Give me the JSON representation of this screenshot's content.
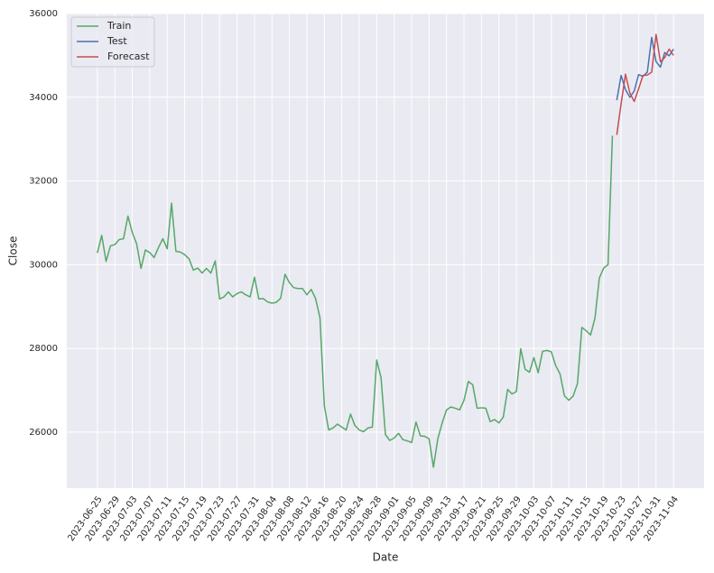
{
  "chart_data": {
    "type": "line",
    "x_label": "Date",
    "y_label": "Close",
    "x": [
      "2023-06-25",
      "2023-06-26",
      "2023-06-27",
      "2023-06-28",
      "2023-06-29",
      "2023-06-30",
      "2023-07-01",
      "2023-07-02",
      "2023-07-03",
      "2023-07-04",
      "2023-07-05",
      "2023-07-06",
      "2023-07-07",
      "2023-07-08",
      "2023-07-09",
      "2023-07-10",
      "2023-07-11",
      "2023-07-12",
      "2023-07-13",
      "2023-07-14",
      "2023-07-15",
      "2023-07-16",
      "2023-07-17",
      "2023-07-18",
      "2023-07-19",
      "2023-07-20",
      "2023-07-21",
      "2023-07-22",
      "2023-07-23",
      "2023-07-24",
      "2023-07-25",
      "2023-07-26",
      "2023-07-27",
      "2023-07-28",
      "2023-07-29",
      "2023-07-30",
      "2023-07-31",
      "2023-08-01",
      "2023-08-02",
      "2023-08-03",
      "2023-08-04",
      "2023-08-05",
      "2023-08-06",
      "2023-08-07",
      "2023-08-08",
      "2023-08-09",
      "2023-08-10",
      "2023-08-11",
      "2023-08-12",
      "2023-08-13",
      "2023-08-14",
      "2023-08-15",
      "2023-08-16",
      "2023-08-17",
      "2023-08-18",
      "2023-08-19",
      "2023-08-20",
      "2023-08-21",
      "2023-08-22",
      "2023-08-23",
      "2023-08-24",
      "2023-08-25",
      "2023-08-26",
      "2023-08-27",
      "2023-08-28",
      "2023-08-29",
      "2023-08-30",
      "2023-08-31",
      "2023-09-01",
      "2023-09-02",
      "2023-09-03",
      "2023-09-04",
      "2023-09-05",
      "2023-09-06",
      "2023-09-07",
      "2023-09-08",
      "2023-09-09",
      "2023-09-10",
      "2023-09-11",
      "2023-09-12",
      "2023-09-13",
      "2023-09-14",
      "2023-09-15",
      "2023-09-16",
      "2023-09-17",
      "2023-09-18",
      "2023-09-19",
      "2023-09-20",
      "2023-09-21",
      "2023-09-22",
      "2023-09-23",
      "2023-09-24",
      "2023-09-25",
      "2023-09-26",
      "2023-09-27",
      "2023-09-28",
      "2023-09-29",
      "2023-09-30",
      "2023-10-01",
      "2023-10-02",
      "2023-10-03",
      "2023-10-04",
      "2023-10-05",
      "2023-10-06",
      "2023-10-07",
      "2023-10-08",
      "2023-10-09",
      "2023-10-10",
      "2023-10-11",
      "2023-10-12",
      "2023-10-13",
      "2023-10-14",
      "2023-10-15",
      "2023-10-16",
      "2023-10-17",
      "2023-10-18",
      "2023-10-19",
      "2023-10-20",
      "2023-10-21",
      "2023-10-22",
      "2023-10-23",
      "2023-10-24",
      "2023-10-25",
      "2023-10-26",
      "2023-10-27",
      "2023-10-28",
      "2023-10-29",
      "2023-10-30",
      "2023-10-31",
      "2023-11-01",
      "2023-11-02",
      "2023-11-03",
      "2023-11-04"
    ],
    "series": [
      {
        "name": "Train",
        "color": "#55a868",
        "values": [
          30280,
          30700,
          30080,
          30450,
          30480,
          30600,
          30620,
          31160,
          30770,
          30500,
          29910,
          30350,
          30290,
          30170,
          30410,
          30620,
          30380,
          31470,
          30320,
          30300,
          30240,
          30140,
          29870,
          29920,
          29800,
          29910,
          29800,
          30090,
          29180,
          29230,
          29350,
          29230,
          29310,
          29350,
          29280,
          29230,
          29700,
          29180,
          29190,
          29110,
          29080,
          29100,
          29200,
          29770,
          29570,
          29450,
          29430,
          29430,
          29280,
          29410,
          29190,
          28730,
          26630,
          26050,
          26100,
          26190,
          26120,
          26050,
          26430,
          26160,
          26050,
          26010,
          26100,
          26120,
          27720,
          27300,
          25940,
          25800,
          25860,
          25970,
          25820,
          25790,
          25750,
          26240,
          25910,
          25900,
          25840,
          25160,
          25840,
          26220,
          26530,
          26600,
          26570,
          26530,
          26760,
          27210,
          27130,
          26570,
          26580,
          26570,
          26250,
          26300,
          26220,
          26360,
          27020,
          26910,
          26970,
          27990,
          27500,
          27430,
          27780,
          27420,
          27930,
          27950,
          27920,
          27590,
          27390,
          26870,
          26760,
          26860,
          27160,
          28500,
          28420,
          28320,
          28720,
          29680,
          29920,
          30000,
          33080,
          null,
          null,
          null,
          null,
          null,
          null,
          null,
          null,
          null,
          null,
          null,
          null,
          null,
          null
        ]
      },
      {
        "name": "Test",
        "color": "#4c72b0",
        "values": [
          null,
          null,
          null,
          null,
          null,
          null,
          null,
          null,
          null,
          null,
          null,
          null,
          null,
          null,
          null,
          null,
          null,
          null,
          null,
          null,
          null,
          null,
          null,
          null,
          null,
          null,
          null,
          null,
          null,
          null,
          null,
          null,
          null,
          null,
          null,
          null,
          null,
          null,
          null,
          null,
          null,
          null,
          null,
          null,
          null,
          null,
          null,
          null,
          null,
          null,
          null,
          null,
          null,
          null,
          null,
          null,
          null,
          null,
          null,
          null,
          null,
          null,
          null,
          null,
          null,
          null,
          null,
          null,
          null,
          null,
          null,
          null,
          null,
          null,
          null,
          null,
          null,
          null,
          null,
          null,
          null,
          null,
          null,
          null,
          null,
          null,
          null,
          null,
          null,
          null,
          null,
          null,
          null,
          null,
          null,
          null,
          null,
          null,
          null,
          null,
          null,
          null,
          null,
          null,
          null,
          null,
          null,
          null,
          null,
          null,
          null,
          null,
          null,
          null,
          null,
          null,
          null,
          null,
          null,
          33930,
          34520,
          34180,
          34000,
          34150,
          34540,
          34500,
          34600,
          35430,
          34850,
          34720,
          35070,
          34990,
          35150
        ]
      },
      {
        "name": "Forecast",
        "color": "#c44e52",
        "values": [
          null,
          null,
          null,
          null,
          null,
          null,
          null,
          null,
          null,
          null,
          null,
          null,
          null,
          null,
          null,
          null,
          null,
          null,
          null,
          null,
          null,
          null,
          null,
          null,
          null,
          null,
          null,
          null,
          null,
          null,
          null,
          null,
          null,
          null,
          null,
          null,
          null,
          null,
          null,
          null,
          null,
          null,
          null,
          null,
          null,
          null,
          null,
          null,
          null,
          null,
          null,
          null,
          null,
          null,
          null,
          null,
          null,
          null,
          null,
          null,
          null,
          null,
          null,
          null,
          null,
          null,
          null,
          null,
          null,
          null,
          null,
          null,
          null,
          null,
          null,
          null,
          null,
          null,
          null,
          null,
          null,
          null,
          null,
          null,
          null,
          null,
          null,
          null,
          null,
          null,
          null,
          null,
          null,
          null,
          null,
          null,
          null,
          null,
          null,
          null,
          null,
          null,
          null,
          null,
          null,
          null,
          null,
          null,
          null,
          null,
          null,
          null,
          null,
          null,
          null,
          null,
          null,
          null,
          null,
          33100,
          33850,
          34550,
          34100,
          33900,
          34200,
          34520,
          34530,
          34600,
          35500,
          34850,
          34950,
          35150,
          35000
        ]
      }
    ],
    "xlim": [
      "2023-06-18",
      "2023-11-11"
    ],
    "xticks": [
      "2023-06-25",
      "2023-06-29",
      "2023-07-03",
      "2023-07-07",
      "2023-07-11",
      "2023-07-15",
      "2023-07-19",
      "2023-07-23",
      "2023-07-27",
      "2023-07-31",
      "2023-08-04",
      "2023-08-08",
      "2023-08-12",
      "2023-08-16",
      "2023-08-20",
      "2023-08-24",
      "2023-08-28",
      "2023-09-01",
      "2023-09-05",
      "2023-09-09",
      "2023-09-13",
      "2023-09-17",
      "2023-09-21",
      "2023-09-25",
      "2023-09-29",
      "2023-10-03",
      "2023-10-07",
      "2023-10-11",
      "2023-10-15",
      "2023-10-19",
      "2023-10-23",
      "2023-10-27",
      "2023-10-31",
      "2023-11-04"
    ],
    "ylim": [
      24660,
      36000
    ],
    "yticks": [
      26000,
      28000,
      30000,
      32000,
      34000,
      36000
    ],
    "grid": true,
    "legend": "upper-left"
  }
}
